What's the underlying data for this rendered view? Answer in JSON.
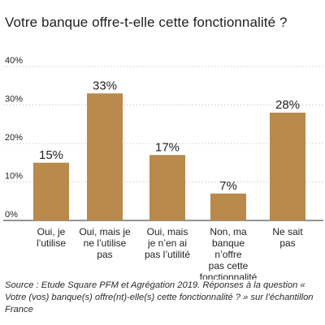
{
  "title": "Votre banque offre-t-elle cette fonctionnalité ?",
  "source": "Source : Etude Square PFM et Agrégation 2019. Réponses à la question « Votre (vos) banque(s) offre(nt)-elle(s) cette fonctionnalité ? » sur l’échantillon France",
  "chart_data": {
    "type": "bar",
    "categories": [
      [
        "Oui, je",
        "l’utilise"
      ],
      [
        "Oui, mais je",
        "ne l’utilise",
        "pas"
      ],
      [
        "Oui, mais",
        "je n’en ai",
        "pas l’utilité"
      ],
      [
        "Non, ma",
        "banque",
        "n’offre",
        "pas cette",
        "fonctionnalité"
      ],
      [
        "Ne sait",
        "pas"
      ]
    ],
    "values": [
      15,
      33,
      17,
      7,
      28
    ],
    "value_labels": [
      "15%",
      "33%",
      "17%",
      "7%",
      "28%"
    ],
    "yticks": [
      0,
      10,
      20,
      30,
      40
    ],
    "ytick_labels": [
      "0%",
      "10%",
      "20%",
      "30%",
      "40%"
    ],
    "ylim": [
      0,
      40
    ],
    "grid": true,
    "bar_color": "#b98a4b",
    "grid_color": "#bdbdbd"
  }
}
